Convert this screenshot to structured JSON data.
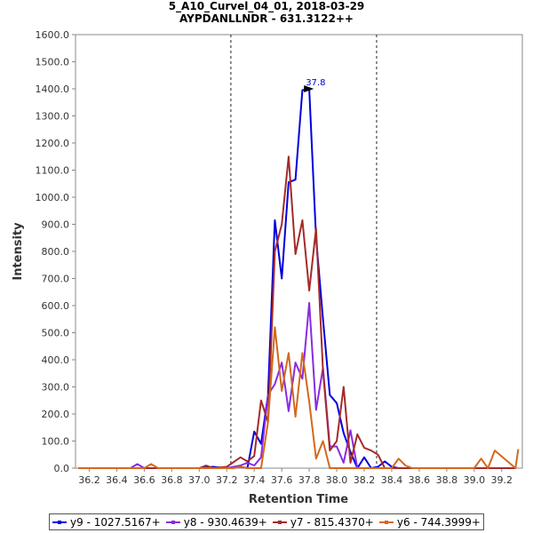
{
  "chart_data": {
    "type": "line",
    "title": "5_A10_Curvel_04_01, 2018-03-29",
    "subtitle": "AYPDANLLNDR - 631.3122++",
    "xlabel": "Retention Time",
    "ylabel": "Intensity",
    "xlim": [
      36.1,
      39.35
    ],
    "ylim": [
      0,
      1600
    ],
    "x_ticks": [
      "36.2",
      "36.4",
      "36.6",
      "36.8",
      "37.0",
      "37.2",
      "37.4",
      "37.6",
      "37.8",
      "38.0",
      "38.2",
      "38.4",
      "38.6",
      "38.8",
      "39.0",
      "39.2"
    ],
    "y_ticks": [
      "0.0",
      "100.0",
      "200.0",
      "300.0",
      "400.0",
      "500.0",
      "600.0",
      "700.0",
      "800.0",
      "900.0",
      "1000.0",
      "1100.0",
      "1200.0",
      "1300.0",
      "1400.0",
      "1500.0",
      "1600.0"
    ],
    "boundaries": [
      37.23,
      38.29
    ],
    "peak_label": "37.8",
    "peak_x": 37.82,
    "peak_y": 1400,
    "series": [
      {
        "name": "y9 - 1027.5167+",
        "color": "#0000dd",
        "x": [
          36.12,
          36.55,
          37.0,
          37.1,
          37.2,
          37.3,
          37.35,
          37.4,
          37.45,
          37.5,
          37.55,
          37.6,
          37.65,
          37.7,
          37.75,
          37.8,
          37.85,
          37.9,
          37.95,
          38.0,
          38.05,
          38.1,
          38.15,
          38.2,
          38.25,
          38.3,
          38.35,
          38.4,
          38.45,
          38.5,
          39.3
        ],
        "y": [
          0,
          0,
          0,
          5,
          0,
          5,
          0,
          135,
          90,
          270,
          915,
          700,
          1055,
          1065,
          1395,
          1400,
          850,
          550,
          270,
          240,
          130,
          60,
          0,
          40,
          0,
          5,
          25,
          5,
          0,
          0,
          0
        ]
      },
      {
        "name": "y8 - 930.4639+",
        "color": "#8a2be2",
        "x": [
          36.12,
          36.5,
          36.55,
          36.6,
          37.0,
          37.2,
          37.3,
          37.35,
          37.4,
          37.45,
          37.5,
          37.55,
          37.6,
          37.65,
          37.7,
          37.75,
          37.8,
          37.85,
          37.9,
          37.95,
          38.0,
          38.05,
          38.1,
          38.15,
          38.2,
          39.3
        ],
        "y": [
          0,
          0,
          15,
          0,
          0,
          0,
          10,
          20,
          10,
          40,
          270,
          310,
          390,
          210,
          390,
          330,
          610,
          215,
          370,
          80,
          80,
          20,
          140,
          0,
          0,
          0
        ]
      },
      {
        "name": "y7 - 815.4370+",
        "color": "#a52a2a",
        "x": [
          36.12,
          37.0,
          37.05,
          37.1,
          37.2,
          37.3,
          37.35,
          37.4,
          37.45,
          37.5,
          37.55,
          37.6,
          37.65,
          37.7,
          37.75,
          37.8,
          37.85,
          37.9,
          37.95,
          38.0,
          38.05,
          38.1,
          38.15,
          38.2,
          38.25,
          38.3,
          38.35,
          39.3
        ],
        "y": [
          0,
          0,
          10,
          0,
          5,
          40,
          25,
          45,
          250,
          170,
          800,
          900,
          1150,
          790,
          915,
          655,
          885,
          360,
          65,
          100,
          300,
          20,
          125,
          75,
          65,
          50,
          0,
          0
        ]
      },
      {
        "name": "y6 - 744.3999+",
        "color": "#d2691e",
        "x": [
          36.12,
          36.6,
          36.65,
          36.7,
          37.0,
          37.25,
          37.3,
          37.35,
          37.4,
          37.45,
          37.5,
          37.55,
          37.6,
          37.65,
          37.7,
          37.75,
          37.8,
          37.85,
          37.9,
          37.95,
          38.0,
          38.05,
          38.1,
          38.15,
          38.2,
          38.3,
          38.4,
          38.45,
          38.5,
          38.55,
          39.0,
          39.05,
          39.1,
          39.15,
          39.3,
          39.32
        ],
        "y": [
          0,
          0,
          15,
          0,
          0,
          0,
          5,
          0,
          0,
          0,
          170,
          520,
          285,
          425,
          190,
          425,
          245,
          35,
          100,
          0,
          0,
          0,
          0,
          0,
          0,
          0,
          0,
          35,
          10,
          0,
          0,
          35,
          0,
          65,
          0,
          70
        ]
      }
    ]
  }
}
